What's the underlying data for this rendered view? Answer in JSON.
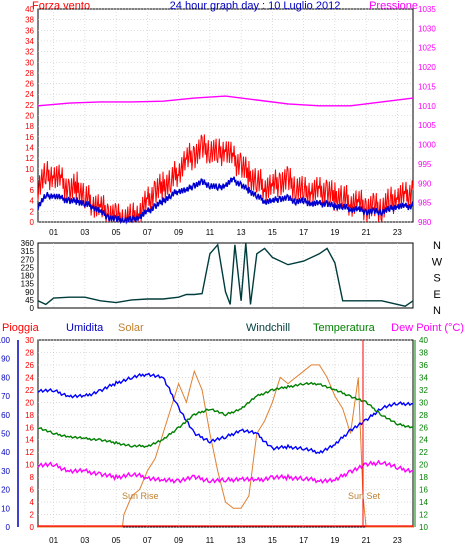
{
  "title": "24 hour graph day : 10 Luglio 2012",
  "colors": {
    "frame": "#000000",
    "grid": "#c8c8c8",
    "wind_gust": "#ff0000",
    "wind_avg": "#0000d0",
    "pressure": "#ff00ff",
    "direction": "#003c3c",
    "humidity": "#0000ff",
    "solar": "#e08030",
    "windchill": "#003c3c",
    "temperature": "#008000",
    "dewpoint": "#ff00ff",
    "rain": "#ff0000"
  },
  "chart_data": [
    {
      "type": "line",
      "name": "wind-pressure",
      "left_title": "Forza vento",
      "right_title": "Pressione",
      "left_ticks": [
        "0",
        "2",
        "4",
        "6",
        "8",
        "10",
        "12",
        "14",
        "16",
        "18",
        "20",
        "22",
        "24",
        "26",
        "28",
        "30",
        "32",
        "34",
        "36",
        "38",
        "40"
      ],
      "right_ticks": [
        "980",
        "985",
        "990",
        "995",
        "1000",
        "1005",
        "1010",
        "1015",
        "1020",
        "1025",
        "1030",
        "1035"
      ],
      "left_range": [
        0,
        40
      ],
      "right_range": [
        980,
        1035
      ],
      "x_ticks": [
        "01",
        "03",
        "05",
        "07",
        "09",
        "11",
        "13",
        "15",
        "17",
        "19",
        "21",
        "23"
      ],
      "x_range": [
        0,
        24
      ],
      "series": [
        {
          "key": "gust",
          "kind": "spiky",
          "x": [
            0,
            0.5,
            1,
            1.5,
            2,
            2.5,
            3,
            3.5,
            4,
            4.5,
            5,
            5.5,
            6,
            6.5,
            7,
            7.5,
            8,
            8.5,
            9,
            9.5,
            10,
            10.5,
            11,
            11.5,
            12,
            12.5,
            13,
            13.5,
            14,
            14.5,
            15,
            15.5,
            16,
            16.5,
            17,
            17.5,
            18,
            18.5,
            19,
            19.5,
            20,
            20.5,
            21,
            21.5,
            22,
            22.5,
            23,
            23.5,
            24
          ],
          "y": [
            7,
            9,
            9,
            8,
            6,
            7,
            5,
            4,
            3,
            2,
            1,
            1,
            1,
            2,
            4,
            6,
            7,
            8,
            10,
            12,
            13,
            14,
            14,
            13,
            14,
            12,
            11,
            9,
            8,
            7,
            7,
            8,
            8,
            7,
            6,
            6,
            6,
            6,
            5,
            5,
            4,
            4,
            3,
            3,
            3,
            4,
            5,
            5,
            6
          ]
        },
        {
          "key": "avg",
          "kind": "smooth",
          "x": [
            0,
            0.5,
            1,
            1.5,
            2,
            2.5,
            3,
            3.5,
            4,
            4.5,
            5,
            5.5,
            6,
            6.5,
            7,
            7.5,
            8,
            8.5,
            9,
            9.5,
            10,
            10.5,
            11,
            11.5,
            12,
            12.5,
            13,
            13.5,
            14,
            14.5,
            15,
            15.5,
            16,
            16.5,
            17,
            17.5,
            18,
            18.5,
            19,
            19.5,
            20,
            20.5,
            21,
            21.5,
            22,
            22.5,
            23,
            23.5,
            24
          ],
          "y": [
            3,
            5,
            5,
            4.5,
            4,
            4,
            3.5,
            3,
            2,
            1,
            0.5,
            0.5,
            0.5,
            1,
            2,
            3,
            4,
            5,
            6,
            6,
            7,
            7.5,
            7,
            6.5,
            7,
            8,
            7,
            6,
            5,
            4,
            4,
            4.5,
            4.5,
            4,
            4,
            3.5,
            3.5,
            3.5,
            3,
            3,
            2.5,
            2.5,
            2,
            2,
            2,
            2.5,
            3,
            3,
            3
          ]
        },
        {
          "key": "pressure",
          "kind": "smooth",
          "axis": "right",
          "x": [
            0,
            2,
            4,
            6,
            8,
            10,
            12,
            14,
            16,
            18,
            20,
            22,
            24
          ],
          "y": [
            1010,
            1010.7,
            1011,
            1011,
            1011.2,
            1012,
            1012.5,
            1011.5,
            1010.5,
            1010,
            1010,
            1011,
            1012
          ]
        }
      ]
    },
    {
      "type": "line",
      "name": "wind-direction",
      "left_ticks": [
        "0",
        "45",
        "90",
        "135",
        "180",
        "225",
        "270",
        "315",
        "360"
      ],
      "left_range": [
        0,
        360
      ],
      "right_letters": [
        "N",
        "W",
        "S",
        "E",
        "N"
      ],
      "x_range": [
        0,
        24
      ],
      "series": [
        {
          "key": "direction",
          "x": [
            0,
            0.5,
            1,
            2,
            3,
            4,
            5,
            6,
            7,
            8,
            9,
            9.5,
            10,
            10.5,
            11,
            11.5,
            12,
            12.3,
            12.6,
            13,
            13.3,
            13.6,
            14,
            14.5,
            15,
            16,
            17,
            18,
            18.5,
            19,
            19.5,
            20,
            21,
            22,
            23,
            23.5,
            24
          ],
          "y": [
            40,
            20,
            55,
            60,
            60,
            40,
            30,
            45,
            50,
            50,
            60,
            75,
            75,
            80,
            300,
            350,
            90,
            20,
            350,
            40,
            360,
            20,
            300,
            330,
            280,
            240,
            260,
            300,
            330,
            250,
            40,
            40,
            40,
            40,
            20,
            10,
            40
          ]
        }
      ]
    },
    {
      "type": "line",
      "name": "temp-humidity",
      "labels": [
        "Pioggia",
        "Umidita",
        "Solar",
        "Windchill",
        "Temperatura",
        "Dew Point (°C)"
      ],
      "humidity_ticks": [
        "0",
        "10",
        "20",
        "30",
        "40",
        "50",
        "60",
        "70",
        "80",
        "90",
        "100"
      ],
      "rain_ticks": [
        "0",
        "2",
        "4",
        "6",
        "8",
        "10",
        "12",
        "14",
        "16",
        "18",
        "20",
        "22",
        "24",
        "26",
        "28",
        "30"
      ],
      "temp_ticks": [
        "10",
        "12",
        "14",
        "16",
        "18",
        "20",
        "22",
        "24",
        "26",
        "28",
        "30",
        "32",
        "34",
        "36",
        "38",
        "40"
      ],
      "humidity_range": [
        0,
        100
      ],
      "temp_range": [
        10,
        40
      ],
      "annotations": [
        "Sun Rise",
        "Sun Set"
      ],
      "x_range": [
        0,
        24
      ],
      "series": [
        {
          "key": "humidity",
          "x": [
            0,
            1,
            2,
            3,
            4,
            5,
            6,
            7,
            8,
            9,
            10,
            11,
            12,
            13,
            14,
            15,
            16,
            17,
            18,
            19,
            20,
            21,
            22,
            23,
            24
          ],
          "y": [
            73,
            73,
            70,
            70,
            73,
            77,
            80,
            82,
            80,
            64,
            50,
            46,
            48,
            52,
            50,
            42,
            43,
            42,
            40,
            44,
            52,
            57,
            64,
            66,
            66
          ]
        },
        {
          "key": "solar",
          "x": [
            0,
            5.4,
            5.5,
            6,
            6.5,
            7,
            7.5,
            8,
            8.5,
            9,
            9.5,
            10,
            10.5,
            11,
            11.5,
            12,
            12.5,
            13,
            13.5,
            14,
            14.5,
            15,
            15.5,
            16,
            16.5,
            17,
            17.5,
            18,
            18.5,
            19,
            19.5,
            20,
            20.5,
            20.8,
            21,
            24
          ],
          "y": [
            0,
            0,
            2,
            5,
            6,
            9,
            11,
            15,
            19,
            23,
            20,
            25,
            22,
            15,
            9,
            4,
            3,
            3,
            5,
            15,
            17,
            20,
            24,
            23,
            24,
            25,
            26,
            26,
            24,
            21,
            19,
            15,
            24,
            5,
            0,
            0
          ]
        },
        {
          "key": "temperature",
          "x": [
            0,
            1,
            2,
            3,
            4,
            5,
            6,
            7,
            8,
            9,
            10,
            11,
            12,
            13,
            14,
            15,
            16,
            17,
            18,
            19,
            20,
            21,
            22,
            23,
            24
          ],
          "y": [
            26,
            25,
            24.5,
            24.2,
            24,
            23.5,
            23,
            23,
            24,
            26,
            28,
            29,
            28,
            29,
            31,
            32,
            32.5,
            33,
            33,
            32,
            31,
            30,
            28,
            26.5,
            26
          ]
        },
        {
          "key": "dewpoint",
          "x": [
            0,
            1,
            2,
            3,
            4,
            5,
            6,
            7,
            8,
            9,
            10,
            11,
            12,
            13,
            14,
            15,
            16,
            17,
            18,
            19,
            20,
            21,
            22,
            23,
            24
          ],
          "y": [
            20,
            20,
            19,
            19,
            18.5,
            18,
            18.5,
            18,
            17.5,
            17.5,
            18,
            17.5,
            17.5,
            17.8,
            17.5,
            18,
            18,
            17.8,
            17.5,
            17.5,
            19,
            20,
            20.5,
            19.5,
            19
          ]
        },
        {
          "key": "rain_sunset",
          "x": [
            20.8,
            20.8
          ],
          "y": [
            0,
            30
          ]
        }
      ]
    }
  ]
}
